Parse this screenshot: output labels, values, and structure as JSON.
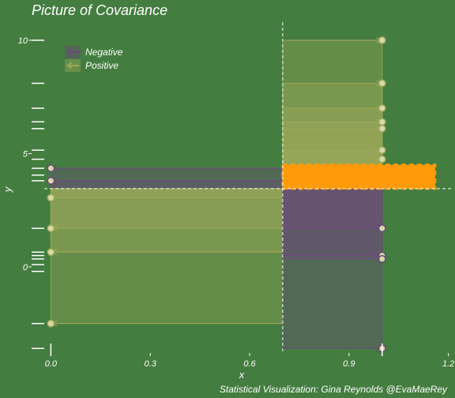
{
  "chart_data": {
    "type": "scatter",
    "title": "Picture of Covariance",
    "xlabel": "x",
    "ylabel": "y",
    "caption": "Statistical Visualization: Gina Reynolds @EvaMaeRey",
    "xlim": [
      -0.02,
      1.22
    ],
    "ylim": [
      -3.8,
      10.8
    ],
    "x_ticks": [
      {
        "value": 0.0,
        "label": "0.0"
      },
      {
        "value": 0.3,
        "label": "0.3"
      },
      {
        "value": 0.6,
        "label": "0.6"
      },
      {
        "value": 0.9,
        "label": "0.9"
      },
      {
        "value": 1.2,
        "label": "1.2"
      }
    ],
    "y_ticks": [
      {
        "value": 0,
        "label": "0"
      },
      {
        "value": 5,
        "label": "5"
      },
      {
        "value": 10,
        "label": "10"
      }
    ],
    "mean_x": 0.7,
    "mean_y": 3.45,
    "legend": {
      "position": "top-left",
      "entries": [
        {
          "label": "Negative",
          "color": "#6b4c78"
        },
        {
          "label": "Positive",
          "color": "#9aa85a"
        }
      ]
    },
    "points": [
      {
        "x": 0.0,
        "y": 4.35,
        "sign": "Negative"
      },
      {
        "x": 0.0,
        "y": 3.8,
        "sign": "Negative"
      },
      {
        "x": 0.0,
        "y": 3.05,
        "sign": "Positive"
      },
      {
        "x": 0.0,
        "y": 1.7,
        "sign": "Positive"
      },
      {
        "x": 0.0,
        "y": 0.65,
        "sign": "Positive"
      },
      {
        "x": 0.0,
        "y": -2.5,
        "sign": "Positive"
      },
      {
        "x": 1.0,
        "y": 10.0,
        "sign": "Positive"
      },
      {
        "x": 1.0,
        "y": 8.1,
        "sign": "Positive"
      },
      {
        "x": 1.0,
        "y": 7.0,
        "sign": "Positive"
      },
      {
        "x": 1.0,
        "y": 6.4,
        "sign": "Positive"
      },
      {
        "x": 1.0,
        "y": 6.1,
        "sign": "Positive"
      },
      {
        "x": 1.0,
        "y": 5.15,
        "sign": "Positive"
      },
      {
        "x": 1.0,
        "y": 4.75,
        "sign": "Positive"
      },
      {
        "x": 1.0,
        "y": 1.7,
        "sign": "Negative"
      },
      {
        "x": 1.0,
        "y": 0.5,
        "sign": "Negative"
      },
      {
        "x": 1.0,
        "y": 0.35,
        "sign": "Negative"
      },
      {
        "x": 1.0,
        "y": -3.6,
        "sign": "Negative"
      }
    ],
    "highlight": {
      "x0": 0.7,
      "x1": 1.16,
      "y0": 3.45,
      "y1": 4.5,
      "color": "#ff9a0a"
    },
    "y_marginal_rug": [
      -3.6,
      -2.5,
      -0.2,
      0.1,
      0.35,
      0.5,
      0.65,
      1.7,
      3.8,
      4.05,
      4.35,
      4.75,
      5.15,
      6.1,
      6.4,
      7.0,
      8.1,
      10.0
    ],
    "colors": {
      "background": "#437d3f",
      "negative": "#6b4c78",
      "positive": "#9aa85a",
      "highlight": "#ff9a0a",
      "reference_line": "#ffffff"
    }
  }
}
